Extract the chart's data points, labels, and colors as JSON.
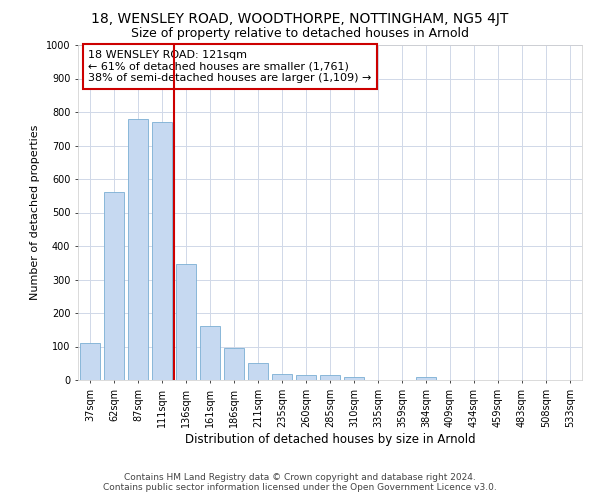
{
  "title1": "18, WENSLEY ROAD, WOODTHORPE, NOTTINGHAM, NG5 4JT",
  "title2": "Size of property relative to detached houses in Arnold",
  "xlabel": "Distribution of detached houses by size in Arnold",
  "ylabel": "Number of detached properties",
  "categories": [
    "37sqm",
    "62sqm",
    "87sqm",
    "111sqm",
    "136sqm",
    "161sqm",
    "186sqm",
    "211sqm",
    "235sqm",
    "260sqm",
    "285sqm",
    "310sqm",
    "335sqm",
    "359sqm",
    "384sqm",
    "409sqm",
    "434sqm",
    "459sqm",
    "483sqm",
    "508sqm",
    "533sqm"
  ],
  "values": [
    110,
    560,
    780,
    770,
    345,
    160,
    95,
    50,
    18,
    14,
    14,
    10,
    0,
    0,
    8,
    0,
    0,
    0,
    0,
    0,
    0
  ],
  "bar_color": "#c6d9f1",
  "bar_edge_color": "#7bafd4",
  "vline_x": 3.5,
  "vline_color": "#cc0000",
  "annotation_text": "18 WENSLEY ROAD: 121sqm\n← 61% of detached houses are smaller (1,761)\n38% of semi-detached houses are larger (1,109) →",
  "annotation_box_edge": "#cc0000",
  "footer_line1": "Contains HM Land Registry data © Crown copyright and database right 2024.",
  "footer_line2": "Contains public sector information licensed under the Open Government Licence v3.0.",
  "ylim": [
    0,
    1000
  ],
  "yticks": [
    0,
    100,
    200,
    300,
    400,
    500,
    600,
    700,
    800,
    900,
    1000
  ],
  "bg_color": "#ffffff",
  "title1_fontsize": 10,
  "title2_fontsize": 9,
  "xlabel_fontsize": 8.5,
  "ylabel_fontsize": 8,
  "annot_fontsize": 8,
  "tick_fontsize": 7
}
